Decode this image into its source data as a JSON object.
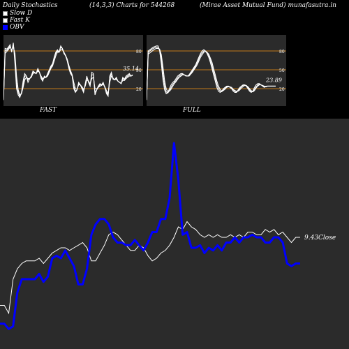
{
  "header": {
    "title": "Daily Stochastics",
    "params": "(14,3,3) Charts for 544268",
    "name": "(Mirae  Asset Mutual Fund) munafasutra.in"
  },
  "legend": [
    {
      "label": "Slow  D",
      "color": "#ffffff"
    },
    {
      "label": "Fast K",
      "color": "#ffffff"
    },
    {
      "label": "OBV",
      "color": "#0000ff"
    }
  ],
  "colors": {
    "background": "#000000",
    "panel": "#2b2b2b",
    "level_line": "#c07a18",
    "obv": "#0000ff",
    "close": "#ffffff"
  },
  "chart_data": [
    {
      "type": "line",
      "title": "FAST",
      "ylim": [
        0,
        100
      ],
      "levels": [
        80,
        50,
        20
      ],
      "level_labels": [
        "80",
        "50",
        "20"
      ],
      "last_value_label": "35.14",
      "x": [
        1,
        2,
        3,
        4,
        5,
        6,
        7,
        8,
        9,
        10,
        11,
        12,
        13,
        14,
        15,
        16,
        17,
        18,
        19,
        20,
        21,
        22,
        23,
        24,
        25,
        26,
        27,
        28,
        29,
        30,
        31,
        32,
        33,
        34,
        35,
        36,
        37,
        38,
        39,
        40,
        41,
        42,
        43,
        44,
        45,
        46,
        47,
        48,
        49,
        50,
        51,
        52,
        53,
        54,
        55,
        56,
        57,
        58,
        59,
        60,
        61,
        62,
        63,
        64,
        65,
        66,
        67,
        68,
        69,
        70,
        71,
        72,
        73,
        74,
        75,
        76,
        77,
        78,
        79,
        80
      ],
      "series": [
        {
          "values": [
            2,
            84,
            83,
            86,
            90,
            78,
            93,
            60,
            20,
            10,
            6,
            14,
            32,
            44,
            40,
            30,
            36,
            40,
            48,
            46,
            44,
            52,
            46,
            36,
            32,
            40,
            38,
            44,
            50,
            56,
            60,
            70,
            78,
            82,
            78,
            88,
            84,
            76,
            72,
            64,
            52,
            44,
            40,
            20,
            14,
            18,
            30,
            26,
            20,
            14,
            28,
            40,
            30,
            24,
            46,
            44,
            10,
            18,
            24,
            28,
            26,
            30,
            22,
            12,
            8,
            40,
            46,
            35,
            34,
            38,
            32,
            30,
            28,
            38,
            35,
            40,
            42,
            44,
            40,
            42
          ]
        },
        {
          "values": [
            2,
            80,
            81,
            84,
            88,
            80,
            90,
            70,
            30,
            14,
            8,
            12,
            26,
            40,
            40,
            34,
            36,
            40,
            46,
            46,
            44,
            50,
            46,
            38,
            34,
            38,
            38,
            42,
            48,
            54,
            58,
            68,
            76,
            80,
            78,
            86,
            84,
            78,
            72,
            66,
            54,
            46,
            40,
            24,
            16,
            18,
            28,
            26,
            22,
            16,
            26,
            38,
            32,
            26,
            42,
            42,
            14,
            18,
            22,
            26,
            26,
            28,
            22,
            14,
            10,
            36,
            44,
            36,
            34,
            36,
            32,
            30,
            28,
            36,
            34,
            38,
            40,
            42,
            40,
            42
          ]
        },
        {
          "values": [
            2,
            76,
            79,
            82,
            86,
            82,
            86,
            76,
            40,
            18,
            10,
            12,
            22,
            34,
            38,
            36,
            36,
            38,
            44,
            45,
            44,
            48,
            46,
            40,
            36,
            37,
            38,
            40,
            46,
            52,
            56,
            64,
            72,
            78,
            78,
            82,
            82,
            78,
            73,
            67,
            57,
            49,
            42,
            30,
            20,
            19,
            26,
            26,
            23,
            19,
            24,
            34,
            32,
            28,
            36,
            38,
            20,
            20,
            22,
            24,
            25,
            27,
            23,
            17,
            12,
            30,
            40,
            37,
            34,
            35,
            32,
            30,
            29,
            33,
            33,
            36,
            38,
            40,
            40,
            41
          ]
        }
      ]
    },
    {
      "type": "line",
      "title": "FULL",
      "ylim": [
        0,
        100
      ],
      "levels": [
        80,
        50,
        20
      ],
      "level_labels": [
        "80",
        "50",
        "20"
      ],
      "last_value_label": "23.89",
      "x": [
        1,
        2,
        3,
        4,
        5,
        6,
        7,
        8,
        9,
        10,
        11,
        12,
        13,
        14,
        15,
        16,
        17,
        18,
        19,
        20,
        21,
        22,
        23,
        24,
        25,
        26,
        27,
        28,
        29,
        30,
        31,
        32,
        33,
        34,
        35,
        36,
        37,
        38,
        39,
        40,
        41,
        42,
        43,
        44,
        45,
        46,
        47,
        48,
        49,
        50,
        51,
        52,
        53,
        54,
        55,
        56,
        57,
        58,
        59,
        60,
        61,
        62,
        63,
        64,
        65,
        66,
        67,
        68,
        69,
        70,
        71,
        72,
        73,
        74,
        75,
        76,
        77,
        78,
        79,
        80
      ],
      "series": [
        {
          "values": [
            2,
            80,
            82,
            84,
            86,
            87,
            88,
            88,
            80,
            60,
            35,
            18,
            12,
            14,
            20,
            26,
            30,
            32,
            36,
            40,
            42,
            44,
            44,
            42,
            40,
            40,
            42,
            46,
            50,
            54,
            58,
            64,
            70,
            76,
            80,
            82,
            80,
            76,
            70,
            62,
            52,
            42,
            32,
            22,
            16,
            14,
            16,
            20,
            22,
            24,
            24,
            22,
            20,
            16,
            14,
            14,
            18,
            22,
            24,
            26,
            26,
            24,
            20,
            16,
            14,
            16,
            22,
            26,
            28,
            28,
            26,
            24,
            22,
            24,
            24,
            24,
            24,
            24,
            24,
            24
          ]
        },
        {
          "values": [
            2,
            78,
            80,
            82,
            84,
            85,
            86,
            86,
            82,
            68,
            45,
            25,
            15,
            13,
            17,
            22,
            27,
            30,
            33,
            37,
            40,
            42,
            43,
            42,
            41,
            40,
            41,
            44,
            48,
            52,
            56,
            61,
            67,
            73,
            77,
            80,
            80,
            78,
            73,
            66,
            57,
            47,
            37,
            27,
            20,
            16,
            15,
            18,
            21,
            23,
            24,
            23,
            21,
            18,
            16,
            15,
            16,
            20,
            23,
            25,
            26,
            25,
            22,
            18,
            15,
            15,
            19,
            23,
            26,
            27,
            26,
            25,
            23,
            23,
            24,
            24,
            24,
            24,
            24,
            24
          ]
        },
        {
          "values": [
            2,
            75,
            77,
            79,
            81,
            83,
            84,
            84,
            83,
            74,
            55,
            33,
            20,
            15,
            16,
            19,
            24,
            28,
            31,
            35,
            38,
            40,
            42,
            42,
            41,
            40,
            40,
            43,
            46,
            50,
            54,
            58,
            64,
            70,
            74,
            78,
            79,
            78,
            75,
            69,
            62,
            52,
            42,
            32,
            24,
            19,
            16,
            17,
            19,
            22,
            23,
            23,
            22,
            19,
            17,
            16,
            16,
            18,
            21,
            23,
            25,
            25,
            23,
            20,
            17,
            15,
            17,
            21,
            24,
            26,
            26,
            25,
            24,
            23,
            24,
            24,
            24,
            24,
            24,
            24
          ]
        }
      ]
    },
    {
      "type": "line",
      "last_value_label": "9.43Close",
      "x": [
        1,
        2,
        3,
        4,
        5,
        6,
        7,
        8,
        9,
        10,
        11,
        12,
        13,
        14,
        15,
        16,
        17,
        18,
        19,
        20,
        21,
        22,
        23,
        24,
        25,
        26,
        27,
        28,
        29,
        30,
        31,
        32,
        33,
        34,
        35,
        36,
        37,
        38,
        39,
        40,
        41,
        42,
        43,
        44,
        45,
        46,
        47,
        48,
        49,
        50,
        51,
        52,
        53,
        54,
        55,
        56,
        57,
        58,
        59,
        60,
        61,
        62,
        63,
        64,
        65,
        66,
        67,
        68,
        69,
        70
      ],
      "series": [
        {
          "name": "Close",
          "color": "#ffffff",
          "values": [
            28,
            28,
            22,
            48,
            56,
            60,
            62,
            62,
            62,
            64,
            60,
            64,
            68,
            70,
            72,
            72,
            70,
            72,
            74,
            76,
            72,
            62,
            62,
            68,
            74,
            82,
            84,
            82,
            78,
            74,
            70,
            70,
            74,
            72,
            66,
            62,
            64,
            68,
            70,
            74,
            80,
            88,
            86,
            92,
            88,
            86,
            82,
            80,
            82,
            80,
            82,
            80,
            80,
            82,
            80,
            82,
            80,
            84,
            84,
            82,
            82,
            86,
            84,
            86,
            82,
            84,
            80,
            76,
            80,
            80
          ]
        },
        {
          "name": "OBV",
          "color": "#0000ff",
          "values": [
            14,
            14,
            10,
            12,
            38,
            48,
            48,
            48,
            48,
            52,
            46,
            50,
            64,
            66,
            64,
            70,
            64,
            58,
            44,
            44,
            56,
            82,
            90,
            94,
            94,
            90,
            80,
            76,
            76,
            74,
            74,
            78,
            74,
            70,
            76,
            84,
            84,
            94,
            94,
            110,
            152,
            124,
            82,
            84,
            72,
            72,
            74,
            68,
            72,
            70,
            74,
            70,
            76,
            76,
            80,
            76,
            80,
            80,
            82,
            80,
            80,
            76,
            76,
            80,
            80,
            76,
            60,
            58,
            60,
            60
          ]
        }
      ]
    }
  ]
}
